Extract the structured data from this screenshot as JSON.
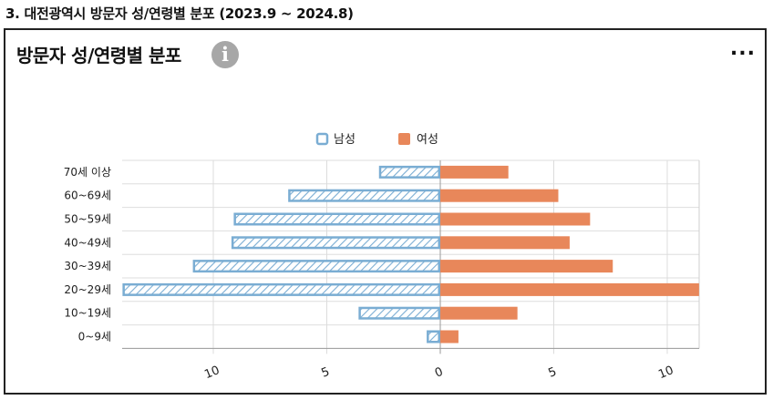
{
  "page": {
    "section_title": "3. 대전광역시 방문자 성/연령별 분포 (2023.9 ~ 2024.8)",
    "panel_title": "방문자 성/연령별 분포",
    "info_icon": "info-icon",
    "more_icon": "more-options-icon",
    "info_glyph": "i",
    "more_glyph": "..."
  },
  "chart_data": {
    "type": "bar",
    "orientation": "horizontal-population-pyramid",
    "categories": [
      "70세 이상",
      "60~69세",
      "50~59세",
      "40~49세",
      "30~39세",
      "20~29세",
      "10~19세",
      "0~9세"
    ],
    "series": [
      {
        "name": "남성",
        "values": [
          2.7,
          6.7,
          9.1,
          9.2,
          10.9,
          14.0,
          3.6,
          0.6
        ],
        "color": "#7aadd3",
        "pattern": "hatched"
      },
      {
        "name": "여성",
        "values": [
          3.0,
          5.2,
          6.6,
          5.7,
          7.6,
          11.4,
          3.4,
          0.8
        ],
        "color": "#e8875a",
        "pattern": "solid"
      }
    ],
    "x_ticks": [
      10,
      5,
      0,
      5,
      10
    ],
    "xlim": [
      -14,
      11.4
    ],
    "legend_position": "top-center",
    "grid": true
  }
}
